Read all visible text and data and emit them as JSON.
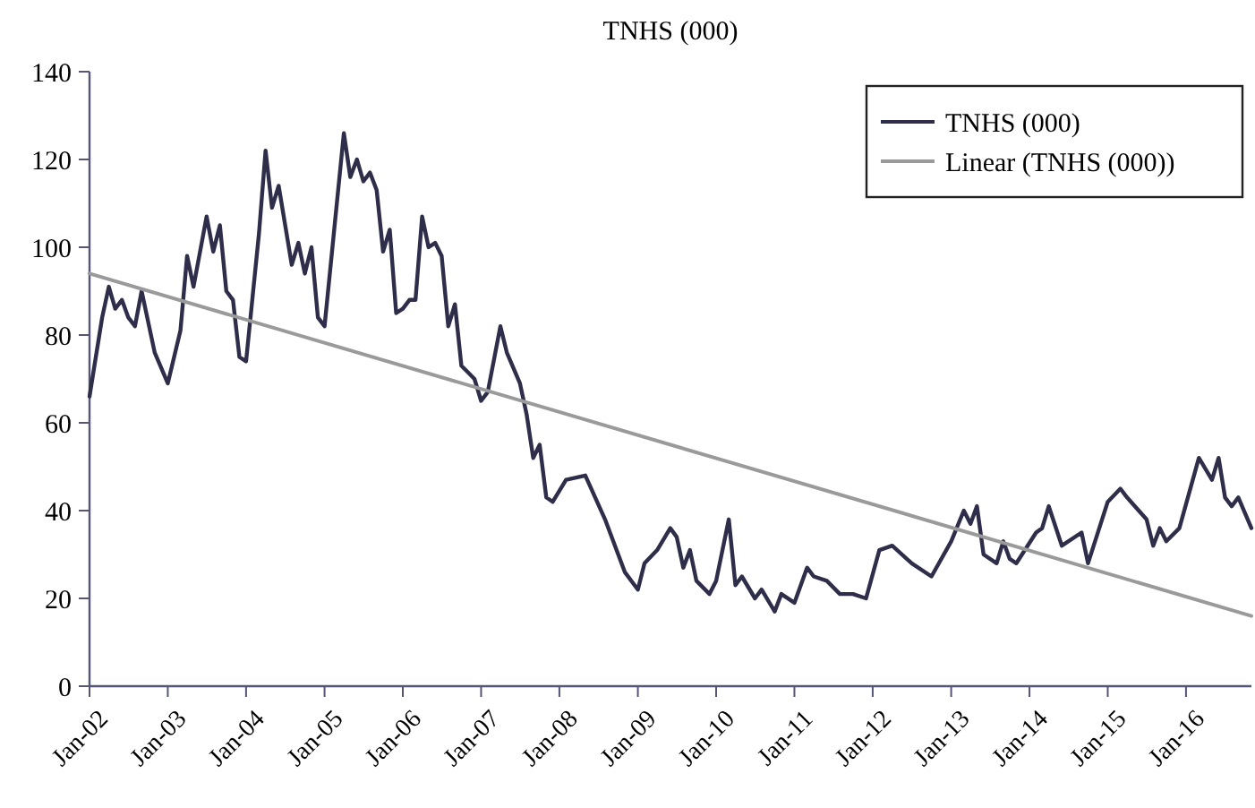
{
  "chart_data": {
    "type": "line",
    "title": "TNHS (000)",
    "xlim": [
      "2002-01",
      "2016-11"
    ],
    "xticks": [
      {
        "value": "2002-01",
        "label": "Jan-02"
      },
      {
        "value": "2003-01",
        "label": "Jan-03"
      },
      {
        "value": "2004-01",
        "label": "Jan-04"
      },
      {
        "value": "2005-01",
        "label": "Jan-05"
      },
      {
        "value": "2006-01",
        "label": "Jan-06"
      },
      {
        "value": "2007-01",
        "label": "Jan-07"
      },
      {
        "value": "2008-01",
        "label": "Jan-08"
      },
      {
        "value": "2009-01",
        "label": "Jan-09"
      },
      {
        "value": "2010-01",
        "label": "Jan-10"
      },
      {
        "value": "2011-01",
        "label": "Jan-11"
      },
      {
        "value": "2012-01",
        "label": "Jan-12"
      },
      {
        "value": "2013-01",
        "label": "Jan-13"
      },
      {
        "value": "2014-01",
        "label": "Jan-14"
      },
      {
        "value": "2015-01",
        "label": "Jan-15"
      },
      {
        "value": "2016-01",
        "label": "Jan-16"
      }
    ],
    "ylim": [
      0,
      140
    ],
    "yticks": [
      0,
      20,
      40,
      60,
      80,
      100,
      120,
      140
    ],
    "legend": "top right",
    "marker": "none",
    "line_style": "solid",
    "grid": false,
    "series": [
      {
        "name": "TNHS (000)",
        "color": "#2e2e4a",
        "x": [
          "2002-01",
          "2002-03",
          "2002-04",
          "2002-05",
          "2002-06",
          "2002-07",
          "2002-08",
          "2002-09",
          "2002-11",
          "2003-01",
          "2003-03",
          "2003-04",
          "2003-05",
          "2003-07",
          "2003-08",
          "2003-09",
          "2003-10",
          "2003-11",
          "2003-12",
          "2004-01",
          "2004-03",
          "2004-04",
          "2004-05",
          "2004-06",
          "2004-08",
          "2004-09",
          "2004-10",
          "2004-11",
          "2004-12",
          "2005-01",
          "2005-04",
          "2005-05",
          "2005-06",
          "2005-07",
          "2005-08",
          "2005-09",
          "2005-10",
          "2005-11",
          "2005-12",
          "2006-01",
          "2006-02",
          "2006-03",
          "2006-04",
          "2006-05",
          "2006-06",
          "2006-07",
          "2006-08",
          "2006-09",
          "2006-10",
          "2006-12",
          "2007-01",
          "2007-02",
          "2007-04",
          "2007-05",
          "2007-07",
          "2007-08",
          "2007-09",
          "2007-10",
          "2007-11",
          "2007-12",
          "2008-02",
          "2008-05",
          "2008-08",
          "2008-11",
          "2009-01",
          "2009-02",
          "2009-04",
          "2009-06",
          "2009-07",
          "2009-08",
          "2009-09",
          "2009-10",
          "2009-12",
          "2010-01",
          "2010-03",
          "2010-04",
          "2010-05",
          "2010-07",
          "2010-08",
          "2010-10",
          "2010-11",
          "2011-01",
          "2011-03",
          "2011-04",
          "2011-06",
          "2011-08",
          "2011-10",
          "2011-12",
          "2012-02",
          "2012-04",
          "2012-07",
          "2012-10",
          "2013-01",
          "2013-03",
          "2013-04",
          "2013-05",
          "2013-06",
          "2013-08",
          "2013-09",
          "2013-10",
          "2013-11",
          "2014-02",
          "2014-03",
          "2014-04",
          "2014-06",
          "2014-09",
          "2014-10",
          "2015-01",
          "2015-03",
          "2015-04",
          "2015-07",
          "2015-08",
          "2015-09",
          "2015-10",
          "2015-12",
          "2016-03",
          "2016-05",
          "2016-06",
          "2016-07",
          "2016-08",
          "2016-09",
          "2016-11"
        ],
        "values": [
          66,
          84,
          91,
          86,
          88,
          84,
          82,
          90,
          76,
          69,
          81,
          98,
          91,
          107,
          99,
          105,
          90,
          88,
          75,
          74,
          103,
          122,
          109,
          114,
          96,
          101,
          94,
          100,
          84,
          82,
          126,
          116,
          120,
          115,
          117,
          113,
          99,
          104,
          85,
          86,
          88,
          88,
          107,
          100,
          101,
          98,
          82,
          87,
          73,
          70,
          65,
          67,
          82,
          76,
          69,
          62,
          52,
          55,
          43,
          42,
          47,
          48,
          38,
          26,
          22,
          28,
          31,
          36,
          34,
          27,
          31,
          24,
          21,
          24,
          38,
          23,
          25,
          20,
          22,
          17,
          21,
          19,
          27,
          25,
          24,
          21,
          21,
          20,
          31,
          32,
          28,
          25,
          33,
          40,
          37,
          41,
          30,
          28,
          33,
          29,
          28,
          35,
          36,
          41,
          32,
          35,
          28,
          42,
          45,
          43,
          38,
          32,
          36,
          33,
          36,
          52,
          47,
          52,
          43,
          41,
          43,
          36
        ]
      },
      {
        "name": "Linear (TNHS (000))",
        "color": "#9a9a9a",
        "x": [
          "2002-01",
          "2016-11"
        ],
        "values": [
          94,
          16
        ]
      }
    ]
  }
}
